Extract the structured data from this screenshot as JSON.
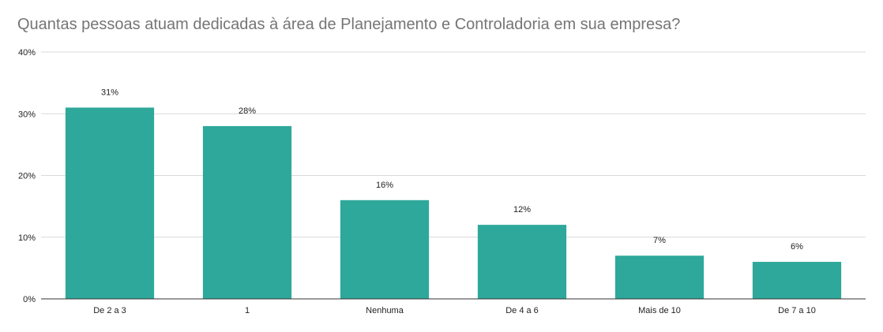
{
  "chart_data": {
    "type": "bar",
    "title": "Quantas pessoas atuam dedicadas à área de Planejamento e Controladoria em sua empresa?",
    "xlabel": "",
    "ylabel": "",
    "categories": [
      "De 2 a 3",
      "1",
      "Nenhuma",
      "De 4 a 6",
      "Mais de 10",
      "De 7 a 10"
    ],
    "values": [
      31,
      28,
      16,
      12,
      7,
      6
    ],
    "data_labels": [
      "31%",
      "28%",
      "16%",
      "12%",
      "7%",
      "6%"
    ],
    "ylim": [
      0,
      40
    ],
    "yticks": [
      0,
      10,
      20,
      30,
      40
    ],
    "ytick_labels": [
      "0%",
      "10%",
      "20%",
      "30%",
      "40%"
    ],
    "grid": true,
    "legend": "none",
    "bar_color": "#2ea89a"
  }
}
